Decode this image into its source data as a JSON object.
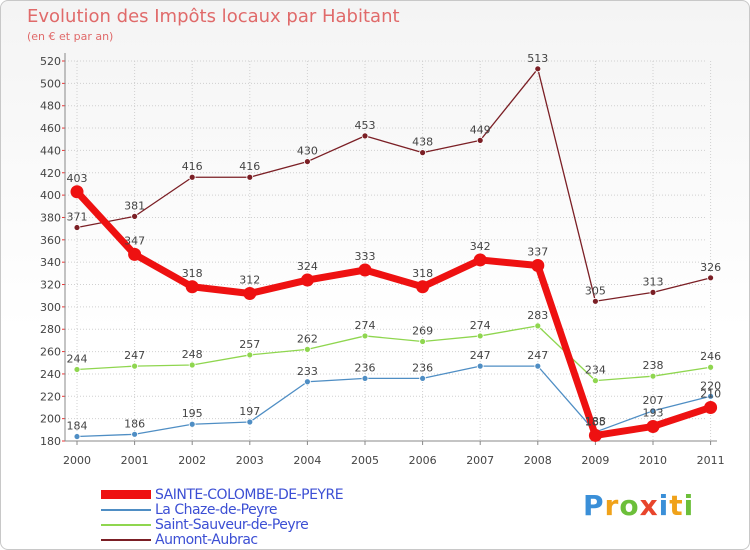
{
  "title": "Evolution des Impôts locaux par Habitant",
  "subtitle": "(en € et par an)",
  "logo": "Proxiti",
  "chart_data": {
    "type": "line",
    "title": "Evolution des Impôts locaux par Habitant",
    "ylabel": "(en € et par an)",
    "xlabel": "",
    "ylim": [
      180,
      520
    ],
    "yticks": [
      180,
      200,
      220,
      240,
      260,
      280,
      300,
      320,
      340,
      360,
      380,
      400,
      420,
      440,
      460,
      480,
      500,
      520
    ],
    "categories": [
      "2000",
      "2001",
      "2002",
      "2003",
      "2004",
      "2005",
      "2006",
      "2007",
      "2008",
      "2009",
      "2010",
      "2011"
    ],
    "series": [
      {
        "name": "Aumont-Aubrac",
        "color": "#7b1f25",
        "values": [
          371,
          381,
          416,
          416,
          430,
          453,
          438,
          449,
          513,
          305,
          313,
          326
        ]
      },
      {
        "name": "Saint-Sauveur-de-Peyre",
        "color": "#8fd64f",
        "values": [
          244,
          247,
          248,
          257,
          262,
          274,
          269,
          274,
          283,
          234,
          238,
          246
        ]
      },
      {
        "name": "La Chaze-de-Peyre",
        "color": "#4f8ec4",
        "values": [
          184,
          186,
          195,
          197,
          233,
          236,
          236,
          247,
          247,
          188,
          207,
          220
        ]
      },
      {
        "name": "SAINTE-COLOMBE-DE-PEYRE",
        "color": "#ee1111",
        "values": [
          403,
          347,
          318,
          312,
          324,
          333,
          318,
          342,
          337,
          185,
          193,
          210
        ]
      }
    ]
  },
  "legend": [
    {
      "label": "SAINTE-COLOMBE-DE-PEYRE",
      "color": "#ee1111"
    },
    {
      "label": "La Chaze-de-Peyre",
      "color": "#4f8ec4"
    },
    {
      "label": "Saint-Sauveur-de-Peyre",
      "color": "#8fd64f"
    },
    {
      "label": "Aumont-Aubrac",
      "color": "#7b1f25"
    }
  ]
}
